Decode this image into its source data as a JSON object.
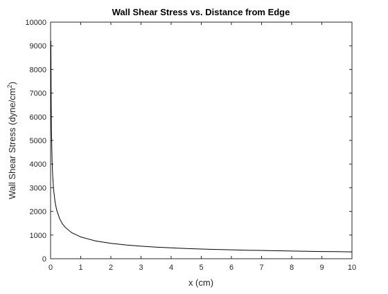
{
  "chart_data": {
    "type": "line",
    "title": "Wall Shear Stress vs. Distance from Edge",
    "xlabel": "x (cm)",
    "ylabel": "Wall Shear Stress (dyne/cm",
    "ylabel_superscript": "2",
    "ylabel_suffix": ")",
    "xlim": [
      0,
      10
    ],
    "ylim": [
      0,
      10000
    ],
    "xticks": [
      0,
      1,
      2,
      3,
      4,
      5,
      6,
      7,
      8,
      9,
      10
    ],
    "yticks": [
      0,
      1000,
      2000,
      3000,
      4000,
      5000,
      6000,
      7000,
      8000,
      9000,
      10000
    ],
    "grid": false,
    "legend": "none",
    "series": [
      {
        "color": "#000000",
        "x": [
          0.01,
          0.02,
          0.03,
          0.05,
          0.07,
          0.1,
          0.15,
          0.2,
          0.3,
          0.4,
          0.5,
          0.7,
          1,
          1.5,
          2,
          2.5,
          3,
          3.5,
          4,
          4.5,
          5,
          5.5,
          6,
          6.5,
          7,
          7.5,
          8,
          8.5,
          9,
          9.5,
          10
        ],
        "y": [
          9200,
          6550,
          5330,
          4140,
          3500,
          2930,
          2390,
          2070,
          1690,
          1460,
          1310,
          1100,
          920,
          750,
          650,
          580,
          530,
          490,
          460,
          430,
          410,
          390,
          375,
          360,
          350,
          335,
          325,
          315,
          305,
          298,
          290
        ]
      }
    ]
  }
}
